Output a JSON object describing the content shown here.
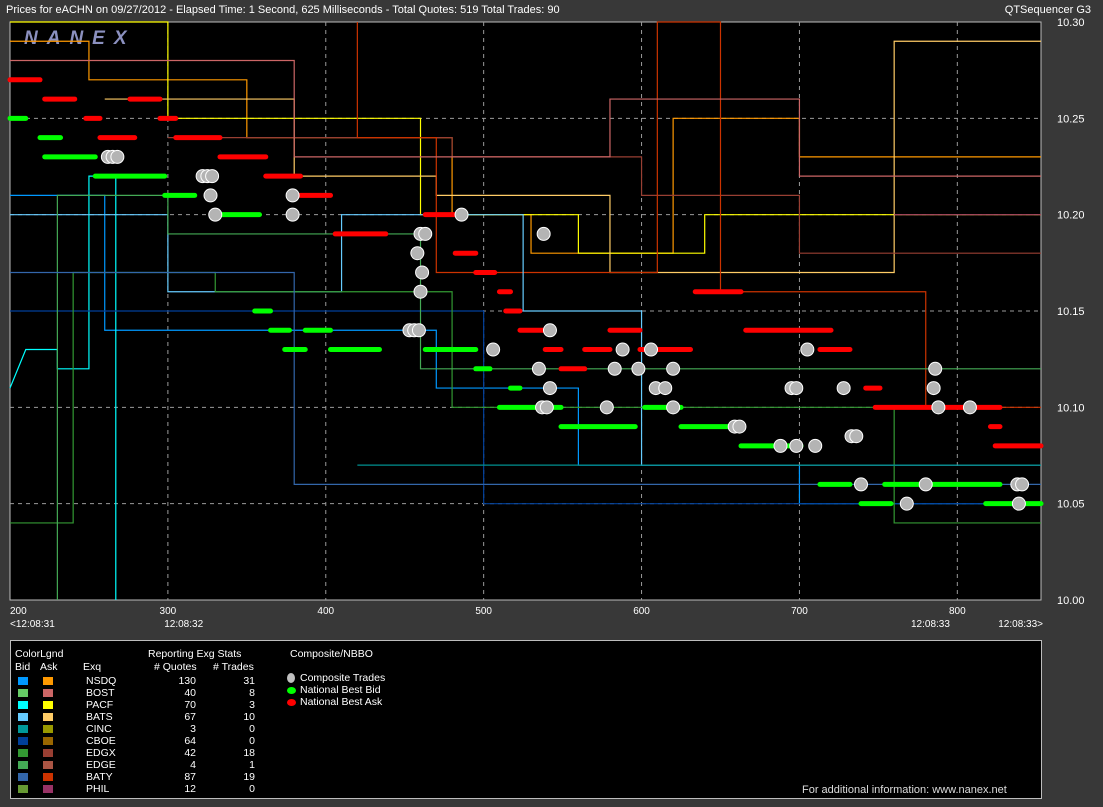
{
  "header": {
    "title": "Prices for  eACHN  on  09/27/2012  -  Elapsed Time: 1 Second, 625 Milliseconds  -  Total Quotes: 519  Total Trades: 90",
    "app_name": "QTSequencer G3",
    "watermark": "NANEX"
  },
  "chart_data": {
    "type": "line",
    "title": "Prices for eACHN on 09/27/2012",
    "xlim": [
      200,
      853
    ],
    "ylim": [
      10.0,
      10.3
    ],
    "grid": true,
    "x_ticks": [
      "200",
      "300",
      "400",
      "500",
      "600",
      "700",
      "800"
    ],
    "x_tick_values": [
      200,
      300,
      400,
      500,
      600,
      700,
      800
    ],
    "y_ticks": [
      "10.30",
      "10.25",
      "10.20",
      "10.15",
      "10.10",
      "10.05",
      "10.00"
    ],
    "y_tick_values": [
      10.3,
      10.25,
      10.2,
      10.15,
      10.1,
      10.05,
      10.0
    ],
    "time_labels": [
      {
        "label": "<12:08:31",
        "x": 200
      },
      {
        "label": "12:08:32",
        "x": 310
      },
      {
        "label": "12:08:33",
        "x": 783
      },
      {
        "label": "12:08:33>",
        "x": 853
      }
    ],
    "national_best_ask": [
      [
        200,
        219,
        10.27
      ],
      [
        222,
        241,
        10.26
      ],
      [
        276,
        295,
        10.26
      ],
      [
        248,
        257,
        10.25
      ],
      [
        295,
        305,
        10.25
      ],
      [
        257,
        279,
        10.24
      ],
      [
        305,
        333,
        10.24
      ],
      [
        333,
        362,
        10.23
      ],
      [
        362,
        384,
        10.22
      ],
      [
        384,
        403,
        10.21
      ],
      [
        406,
        438,
        10.19
      ],
      [
        463,
        485,
        10.2
      ],
      [
        482,
        495,
        10.18
      ],
      [
        495,
        507,
        10.17
      ],
      [
        510,
        517,
        10.16
      ],
      [
        514,
        523,
        10.15
      ],
      [
        523,
        539,
        10.14
      ],
      [
        580,
        599,
        10.14
      ],
      [
        666,
        720,
        10.14
      ],
      [
        539,
        549,
        10.13
      ],
      [
        564,
        580,
        10.13
      ],
      [
        599,
        631,
        10.13
      ],
      [
        713,
        732,
        10.13
      ],
      [
        549,
        564,
        10.12
      ],
      [
        634,
        663,
        10.16
      ],
      [
        742,
        751,
        10.11
      ],
      [
        748,
        827,
        10.1
      ],
      [
        821,
        827,
        10.09
      ],
      [
        824,
        853,
        10.08
      ]
    ],
    "national_best_bid": [
      [
        200,
        210,
        10.25
      ],
      [
        219,
        232,
        10.24
      ],
      [
        222,
        254,
        10.23
      ],
      [
        254,
        298,
        10.22
      ],
      [
        298,
        317,
        10.21
      ],
      [
        330,
        358,
        10.2
      ],
      [
        355,
        365,
        10.15
      ],
      [
        365,
        377,
        10.14
      ],
      [
        387,
        403,
        10.14
      ],
      [
        374,
        387,
        10.13
      ],
      [
        403,
        434,
        10.13
      ],
      [
        463,
        495,
        10.13
      ],
      [
        495,
        504,
        10.12
      ],
      [
        517,
        523,
        10.11
      ],
      [
        510,
        549,
        10.1
      ],
      [
        602,
        625,
        10.1
      ],
      [
        549,
        596,
        10.09
      ],
      [
        625,
        659,
        10.09
      ],
      [
        663,
        701,
        10.08
      ],
      [
        713,
        732,
        10.06
      ],
      [
        754,
        827,
        10.06
      ],
      [
        739,
        758,
        10.05
      ],
      [
        818,
        853,
        10.05
      ]
    ],
    "composite_trades": [
      [
        262,
        10.23
      ],
      [
        265,
        10.23
      ],
      [
        268,
        10.23
      ],
      [
        322,
        10.22
      ],
      [
        325,
        10.22
      ],
      [
        328,
        10.22
      ],
      [
        327,
        10.21
      ],
      [
        330,
        10.2
      ],
      [
        379,
        10.21
      ],
      [
        379,
        10.2
      ],
      [
        486,
        10.2
      ],
      [
        460,
        10.19
      ],
      [
        463,
        10.19
      ],
      [
        458,
        10.18
      ],
      [
        461,
        10.17
      ],
      [
        460,
        10.16
      ],
      [
        453,
        10.14
      ],
      [
        456,
        10.14
      ],
      [
        459,
        10.14
      ],
      [
        506,
        10.13
      ],
      [
        538,
        10.19
      ],
      [
        542,
        10.14
      ],
      [
        535,
        10.12
      ],
      [
        542,
        10.11
      ],
      [
        537,
        10.1
      ],
      [
        540,
        10.1
      ],
      [
        578,
        10.1
      ],
      [
        583,
        10.12
      ],
      [
        588,
        10.13
      ],
      [
        598,
        10.12
      ],
      [
        606,
        10.13
      ],
      [
        609,
        10.11
      ],
      [
        615,
        10.11
      ],
      [
        620,
        10.12
      ],
      [
        620,
        10.1
      ],
      [
        659,
        10.09
      ],
      [
        662,
        10.09
      ],
      [
        705,
        10.13
      ],
      [
        695,
        10.11
      ],
      [
        698,
        10.11
      ],
      [
        688,
        10.08
      ],
      [
        698,
        10.08
      ],
      [
        710,
        10.08
      ],
      [
        728,
        10.11
      ],
      [
        733,
        10.085
      ],
      [
        736,
        10.085
      ],
      [
        739,
        10.06
      ],
      [
        768,
        10.05
      ],
      [
        780,
        10.06
      ],
      [
        786,
        10.12
      ],
      [
        785,
        10.11
      ],
      [
        788,
        10.1
      ],
      [
        808,
        10.1
      ],
      [
        838,
        10.06
      ],
      [
        841,
        10.06
      ],
      [
        839,
        10.05
      ]
    ],
    "exchange_quotes": [
      {
        "exchange": "NSDQ",
        "side": "ask",
        "color": "#ff9900",
        "points": [
          [
            200,
            10.29
          ],
          [
            250,
            10.29
          ],
          [
            250,
            10.27
          ],
          [
            350,
            10.27
          ],
          [
            350,
            10.24
          ],
          [
            480,
            10.24
          ],
          [
            480,
            10.2
          ],
          [
            530,
            10.2
          ],
          [
            530,
            10.18
          ],
          [
            620,
            10.18
          ],
          [
            620,
            10.25
          ],
          [
            700,
            10.25
          ],
          [
            700,
            10.23
          ],
          [
            853,
            10.23
          ]
        ]
      },
      {
        "exchange": "PACF",
        "side": "ask",
        "color": "#ffff00",
        "points": [
          [
            200,
            10.3
          ],
          [
            300,
            10.3
          ],
          [
            300,
            10.25
          ],
          [
            460,
            10.25
          ],
          [
            460,
            10.2
          ],
          [
            560,
            10.2
          ],
          [
            560,
            10.18
          ],
          [
            640,
            10.18
          ],
          [
            640,
            10.2
          ],
          [
            853,
            10.2
          ]
        ]
      },
      {
        "exchange": "BATS",
        "side": "ask",
        "color": "#ffcc66",
        "points": [
          [
            260,
            10.26
          ],
          [
            380,
            10.26
          ],
          [
            380,
            10.22
          ],
          [
            470,
            10.22
          ],
          [
            470,
            10.21
          ],
          [
            580,
            10.21
          ],
          [
            580,
            10.17
          ],
          [
            760,
            10.17
          ],
          [
            760,
            10.29
          ],
          [
            853,
            10.29
          ]
        ]
      },
      {
        "exchange": "EDGX",
        "side": "ask",
        "color": "#993f33",
        "points": [
          [
            300,
            10.24
          ],
          [
            480,
            10.24
          ],
          [
            480,
            10.23
          ],
          [
            600,
            10.23
          ],
          [
            600,
            10.21
          ],
          [
            700,
            10.21
          ],
          [
            700,
            10.18
          ],
          [
            853,
            10.18
          ]
        ]
      },
      {
        "exchange": "BATY",
        "side": "ask",
        "color": "#cc3300",
        "points": [
          [
            420,
            10.3
          ],
          [
            420,
            10.24
          ],
          [
            470,
            10.24
          ],
          [
            470,
            10.17
          ],
          [
            610,
            10.17
          ],
          [
            610,
            10.3
          ],
          [
            650,
            10.3
          ],
          [
            650,
            10.16
          ],
          [
            780,
            10.16
          ],
          [
            780,
            10.1
          ],
          [
            853,
            10.1
          ]
        ]
      },
      {
        "exchange": "BOST",
        "side": "ask",
        "color": "#cc6666",
        "points": [
          [
            200,
            10.28
          ],
          [
            380,
            10.28
          ],
          [
            380,
            10.23
          ],
          [
            580,
            10.23
          ],
          [
            580,
            10.26
          ],
          [
            700,
            10.26
          ],
          [
            700,
            10.22
          ],
          [
            853,
            10.22
          ]
        ]
      },
      {
        "exchange": "PHIL",
        "side": "ask",
        "color": "#993366",
        "points": [
          [
            760,
            10.2
          ],
          [
            853,
            10.2
          ]
        ]
      },
      {
        "exchange": "NSDQ",
        "side": "bid",
        "color": "#0099ff",
        "points": [
          [
            200,
            10.21
          ],
          [
            260,
            10.21
          ],
          [
            260,
            10.14
          ],
          [
            470,
            10.14
          ],
          [
            470,
            10.11
          ],
          [
            560,
            10.11
          ],
          [
            560,
            10.07
          ],
          [
            700,
            10.07
          ],
          [
            700,
            10.05
          ],
          [
            853,
            10.05
          ]
        ]
      },
      {
        "exchange": "PACF",
        "side": "bid",
        "color": "#00ffff",
        "points": [
          [
            200,
            10.11
          ],
          [
            210,
            10.13
          ],
          [
            230,
            10.13
          ],
          [
            230,
            10.12
          ],
          [
            250,
            10.12
          ],
          [
            250,
            10.22
          ],
          [
            267,
            10.22
          ],
          [
            267,
            10.0
          ]
        ]
      },
      {
        "exchange": "BATS",
        "side": "bid",
        "color": "#66ccff",
        "points": [
          [
            200,
            10.2
          ],
          [
            300,
            10.2
          ],
          [
            300,
            10.16
          ],
          [
            410,
            10.16
          ],
          [
            410,
            10.2
          ],
          [
            525,
            10.2
          ],
          [
            525,
            10.15
          ],
          [
            600,
            10.15
          ],
          [
            600,
            10.07
          ],
          [
            853,
            10.07
          ]
        ]
      },
      {
        "exchange": "CBOE",
        "side": "bid",
        "color": "#003f99",
        "points": [
          [
            200,
            10.15
          ],
          [
            500,
            10.15
          ],
          [
            500,
            10.05
          ],
          [
            853,
            10.05
          ]
        ]
      },
      {
        "exchange": "EDGX",
        "side": "bid",
        "color": "#339933",
        "points": [
          [
            200,
            10.04
          ],
          [
            240,
            10.04
          ],
          [
            240,
            10.17
          ],
          [
            330,
            10.17
          ],
          [
            330,
            10.16
          ],
          [
            480,
            10.16
          ],
          [
            480,
            10.1
          ],
          [
            760,
            10.1
          ],
          [
            760,
            10.04
          ],
          [
            853,
            10.04
          ]
        ]
      },
      {
        "exchange": "EDGE",
        "side": "bid",
        "color": "#44aa55",
        "points": [
          [
            230,
            10.0
          ],
          [
            230,
            10.21
          ],
          [
            300,
            10.21
          ],
          [
            300,
            10.19
          ],
          [
            460,
            10.19
          ],
          [
            460,
            10.12
          ],
          [
            853,
            10.12
          ]
        ]
      },
      {
        "exchange": "BATY",
        "side": "bid",
        "color": "#3366aa",
        "points": [
          [
            200,
            10.17
          ],
          [
            380,
            10.17
          ],
          [
            380,
            10.06
          ],
          [
            853,
            10.06
          ]
        ]
      },
      {
        "exchange": "CINC",
        "side": "bid",
        "color": "#008f8f",
        "points": [
          [
            420,
            10.07
          ],
          [
            853,
            10.07
          ]
        ]
      }
    ],
    "colors": {
      "nbb": "#00ff00",
      "nba": "#ff0000",
      "trade": "#b4b4b4",
      "grid": "#9a9a9a"
    }
  },
  "legend": {
    "color_title": "ColorLgnd",
    "bid_header": "Bid",
    "ask_header": "Ask",
    "exq_header": "Exq",
    "stats_title": "Reporting Exg Stats",
    "quotes_header": "# Quotes",
    "trades_header": "# Trades",
    "nbbo_title": "Composite/NBBO",
    "nbbo_items": [
      {
        "label": "Composite Trades",
        "color": "#c0c0c0"
      },
      {
        "label": "National Best Bid",
        "color": "#00ff00"
      },
      {
        "label": "National Best Ask",
        "color": "#ff0000"
      }
    ],
    "rows": [
      {
        "exq": "NSDQ",
        "quotes": "130",
        "trades": "31",
        "bid_color": "#0099ff",
        "ask_color": "#ff9900"
      },
      {
        "exq": "BOST",
        "quotes": "40",
        "trades": "8",
        "bid_color": "#66cc66",
        "ask_color": "#cc6666"
      },
      {
        "exq": "PACF",
        "quotes": "70",
        "trades": "3",
        "bid_color": "#00ffff",
        "ask_color": "#ffff00"
      },
      {
        "exq": "BATS",
        "quotes": "67",
        "trades": "10",
        "bid_color": "#66ccff",
        "ask_color": "#ffcc66"
      },
      {
        "exq": "CINC",
        "quotes": "3",
        "trades": "0",
        "bid_color": "#009999",
        "ask_color": "#999900"
      },
      {
        "exq": "CBOE",
        "quotes": "64",
        "trades": "0",
        "bid_color": "#003f99",
        "ask_color": "#996600"
      },
      {
        "exq": "EDGX",
        "quotes": "42",
        "trades": "18",
        "bid_color": "#339933",
        "ask_color": "#993f33"
      },
      {
        "exq": "EDGE",
        "quotes": "4",
        "trades": "1",
        "bid_color": "#44aa55",
        "ask_color": "#aa5544"
      },
      {
        "exq": "BATY",
        "quotes": "87",
        "trades": "19",
        "bid_color": "#3366aa",
        "ask_color": "#cc3300"
      },
      {
        "exq": "PHIL",
        "quotes": "12",
        "trades": "0",
        "bid_color": "#669933",
        "ask_color": "#993366"
      }
    ]
  },
  "footer": "For additional information: www.nanex.net"
}
